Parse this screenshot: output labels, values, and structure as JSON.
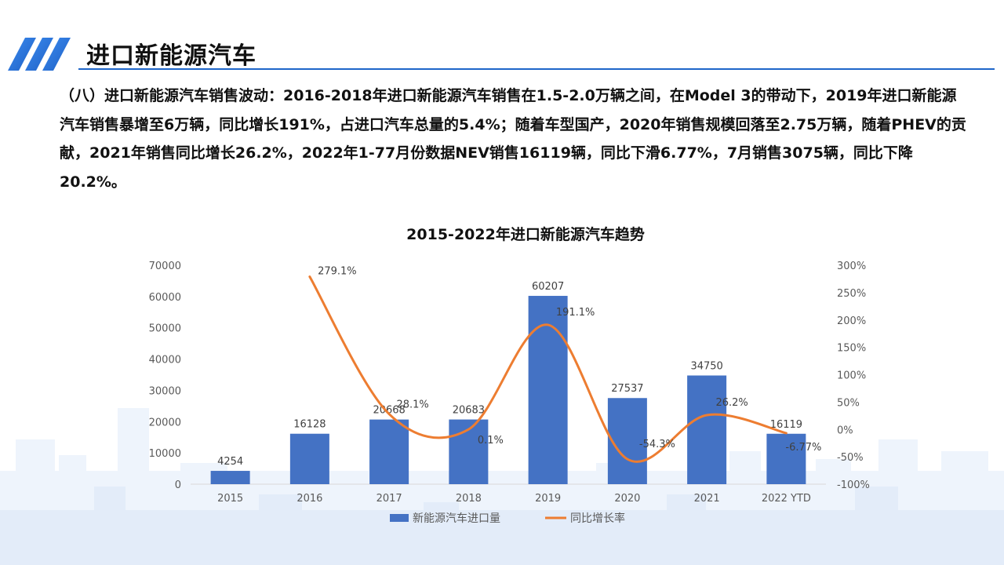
{
  "page": {
    "title": "进口新能源汽车",
    "paragraph": "（八）进口新能源汽车销售波动：2016-2018年进口新能源汽车销售在1.5-2.0万辆之间，在Model 3的带动下，2019年进口新能源汽车销售暴增至6万辆，同比增长191%，占进口汽车总量的5.4%；随着车型国产，2020年销售规模回落至2.75万辆，随着PHEV的贡献，2021年销售同比增长26.2%，2022年1-77月份数据NEV销售16119辆，同比下滑6.77%，7月销售3075辆，同比下降20.2%。"
  },
  "colors": {
    "bar": "#4472c4",
    "line": "#ed7d31",
    "title_line": "#1f66c9"
  },
  "chart_data": {
    "type": "bar",
    "title": "2015-2022年进口新能源汽车趋势",
    "categories": [
      "2015",
      "2016",
      "2017",
      "2018",
      "2019",
      "2020",
      "2021",
      "2022 YTD"
    ],
    "series": [
      {
        "name": "新能源汽车进口量",
        "type": "bar",
        "axis": "left",
        "values": [
          4254,
          16128,
          20668,
          20683,
          60207,
          27537,
          34750,
          16119
        ],
        "labels": [
          "4254",
          "16128",
          "20668",
          "20683",
          "60207",
          "27537",
          "34750",
          "16119"
        ]
      },
      {
        "name": "同比增长率",
        "type": "line",
        "smooth": true,
        "axis": "right",
        "values": [
          null,
          279.1,
          28.1,
          0.1,
          191.1,
          -54.3,
          26.2,
          -6.77
        ],
        "labels": [
          "",
          "279.1%",
          "28.1%",
          "0.1%",
          "191.1%",
          "-54.3%",
          "26.2%",
          "-6.77%"
        ]
      }
    ],
    "y_left": {
      "min": 0,
      "max": 70000,
      "ticks": [
        "0",
        "10000",
        "20000",
        "30000",
        "40000",
        "50000",
        "60000",
        "70000"
      ]
    },
    "y_right": {
      "min": -100,
      "max": 300,
      "ticks": [
        "-100%",
        "-50%",
        "0%",
        "50%",
        "100%",
        "150%",
        "200%",
        "250%",
        "300%"
      ]
    },
    "grid": false,
    "legend": "bottom"
  }
}
